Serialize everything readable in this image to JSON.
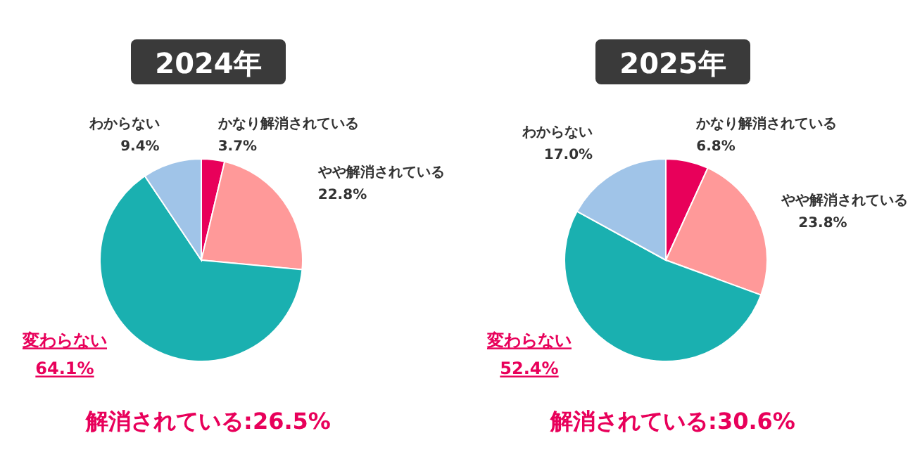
{
  "chart_data": [
    {
      "type": "pie",
      "title": "2024年",
      "categories": [
        "かなり解消されている",
        "やや解消されている",
        "変わらない",
        "わからない"
      ],
      "values": [
        3.7,
        22.8,
        64.1,
        9.4
      ],
      "colors": [
        "#e8005a",
        "#ff9999",
        "#1ab0b0",
        "#a0c4e8"
      ],
      "value_labels": [
        "3.7%",
        "22.8%",
        "64.1%",
        "9.4%"
      ],
      "annotations": [
        "解消されている:26.5%"
      ]
    },
    {
      "type": "pie",
      "title": "2025年",
      "categories": [
        "かなり解消されている",
        "やや解消されている",
        "変わらない",
        "わからない"
      ],
      "values": [
        6.8,
        23.8,
        52.4,
        17.0
      ],
      "colors": [
        "#e8005a",
        "#ff9999",
        "#1ab0b0",
        "#a0c4e8"
      ],
      "value_labels": [
        "6.8%",
        "23.8%",
        "52.4%",
        "17.0%"
      ],
      "annotations": [
        "解消されている:30.6%"
      ]
    }
  ]
}
